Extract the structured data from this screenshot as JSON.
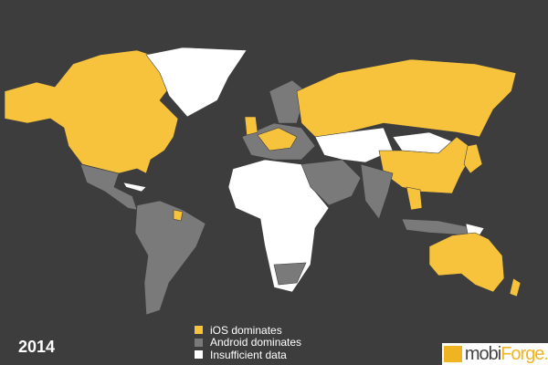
{
  "year": "2014",
  "colors": {
    "background": "#3d3d3d",
    "ios": "#f7c33c",
    "android": "#7a7a7a",
    "insufficient": "#ffffff"
  },
  "legend": [
    {
      "label": "iOS dominates",
      "color": "#f7c33c"
    },
    {
      "label": "Android dominates",
      "color": "#7a7a7a"
    },
    {
      "label": "Insufficient data",
      "color": "#ffffff"
    }
  ],
  "logo": {
    "part1": "mobi",
    "part2": "Forge",
    "dot": "."
  }
}
